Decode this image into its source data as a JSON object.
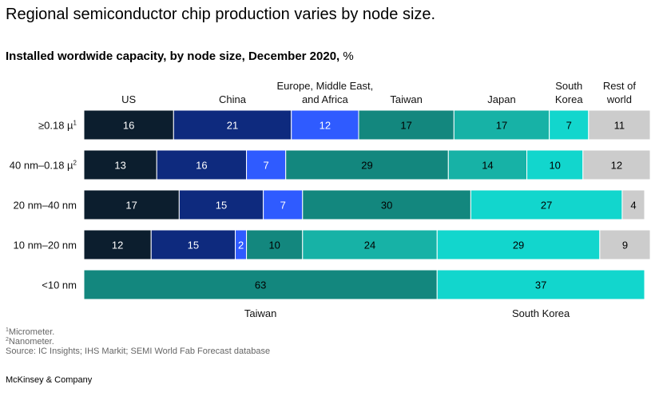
{
  "chart_data": {
    "type": "bar",
    "orientation": "horizontal-stacked",
    "title": "Regional semiconductor chip production varies by node size.",
    "subtitle": "Installed wordwide capacity, by node size, December 2020,",
    "subtitle_unit": "%",
    "region_headers": [
      {
        "id": "us",
        "lines": [
          "US"
        ]
      },
      {
        "id": "china",
        "lines": [
          "China"
        ]
      },
      {
        "id": "emea",
        "lines": [
          "Europe, Middle East,",
          "and Africa"
        ]
      },
      {
        "id": "taiwan",
        "lines": [
          "Taiwan"
        ]
      },
      {
        "id": "japan",
        "lines": [
          "Japan"
        ]
      },
      {
        "id": "south-korea",
        "lines": [
          "South",
          "Korea"
        ]
      },
      {
        "id": "rest",
        "lines": [
          "Rest of",
          "world"
        ]
      }
    ],
    "rows": [
      {
        "label": "≥0.18 µ",
        "sup": "1",
        "segments": [
          {
            "region": "us",
            "value": 16
          },
          {
            "region": "china",
            "value": 21
          },
          {
            "region": "emea",
            "value": 12
          },
          {
            "region": "taiwan",
            "value": 17
          },
          {
            "region": "japan",
            "value": 17
          },
          {
            "region": "south-korea",
            "value": 7
          },
          {
            "region": "rest",
            "value": 11
          }
        ]
      },
      {
        "label": "40 nm–0.18 µ",
        "sup": "2",
        "segments": [
          {
            "region": "us",
            "value": 13
          },
          {
            "region": "china",
            "value": 16
          },
          {
            "region": "emea",
            "value": 7
          },
          {
            "region": "taiwan",
            "value": 29
          },
          {
            "region": "japan",
            "value": 14
          },
          {
            "region": "south-korea",
            "value": 10
          },
          {
            "region": "rest",
            "value": 12
          }
        ]
      },
      {
        "label": "20 nm–40 nm",
        "sup": "",
        "segments": [
          {
            "region": "us",
            "value": 17
          },
          {
            "region": "china",
            "value": 15
          },
          {
            "region": "emea",
            "value": 7
          },
          {
            "region": "taiwan",
            "value": 30
          },
          {
            "region": "south-korea",
            "value": 27
          },
          {
            "region": "rest",
            "value": 4
          }
        ]
      },
      {
        "label": "10 nm–20 nm",
        "sup": "",
        "segments": [
          {
            "region": "us",
            "value": 12
          },
          {
            "region": "china",
            "value": 15
          },
          {
            "region": "emea",
            "value": 2
          },
          {
            "region": "taiwan",
            "value": 10
          },
          {
            "region": "japan",
            "value": 24
          },
          {
            "region": "south-korea",
            "value": 29
          },
          {
            "region": "rest",
            "value": 9
          }
        ]
      },
      {
        "label": "<10 nm",
        "sup": "",
        "segments": [
          {
            "region": "taiwan",
            "value": 63
          },
          {
            "region": "south-korea",
            "value": 37
          }
        ]
      }
    ],
    "bottom_labels": [
      {
        "region": "taiwan",
        "text": "Taiwan"
      },
      {
        "region": "south-korea",
        "text": "South Korea"
      }
    ],
    "colors": {
      "us": "#0c1e2e",
      "china": "#0e2a7e",
      "emea": "#2f5bff",
      "taiwan": "#13877e",
      "japan": "#17b2a6",
      "south-korea": "#12d6cd",
      "rest": "#cccccc"
    },
    "label_colors": {
      "us": "#ffffff",
      "china": "#ffffff",
      "emea": "#ffffff",
      "taiwan": "#000000",
      "japan": "#000000",
      "south-korea": "#000000",
      "rest": "#000000"
    },
    "xlim": [
      0,
      100
    ]
  },
  "footnotes": [
    {
      "sup": "1",
      "text": "Micrometer."
    },
    {
      "sup": "2",
      "text": "Nanometer."
    },
    {
      "sup": "",
      "text": "Source: IC Insights; IHS Markit; SEMI World Fab Forecast database"
    }
  ],
  "brand": "McKinsey & Company"
}
